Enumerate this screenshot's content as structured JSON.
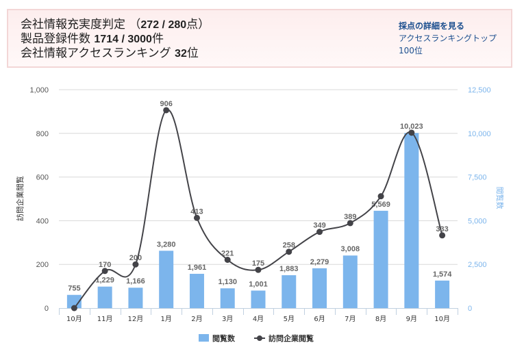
{
  "summary": {
    "line1_label": "会社情報充実度判定 （",
    "line1_value": "272 / 280",
    "line1_suffix": "点）",
    "line2_label": "製品登録件数 ",
    "line2_value": "1714 / 3000",
    "line2_suffix": "件",
    "line3_label": "会社情報アクセスランキング ",
    "line3_value": "32",
    "line3_suffix": "位",
    "link_score_details": "採点の詳細を見る",
    "link_access_ranking": "アクセスランキングトップ100位"
  },
  "colors": {
    "bar": "#7cb5ec",
    "line": "#434348",
    "right_axis": "#7cb5ec",
    "grid": "#d8d8d8"
  },
  "chart_data": {
    "type": "bar+line",
    "categories": [
      "10月",
      "11月",
      "12月",
      "1月",
      "2月",
      "3月",
      "4月",
      "5月",
      "6月",
      "7月",
      "8月",
      "9月",
      "10月"
    ],
    "series": [
      {
        "name": "閲覧数",
        "type": "bar",
        "axis": "right",
        "values": [
          755,
          1229,
          1166,
          3280,
          1961,
          1130,
          1001,
          1883,
          2279,
          3008,
          5569,
          10023,
          1574
        ],
        "labels": [
          "755",
          "1,229",
          "1,166",
          "3,280",
          "1,961",
          "1,130",
          "1,001",
          "1,883",
          "2,279",
          "3,008",
          "5,569",
          "10,023",
          "1,574"
        ]
      },
      {
        "name": "訪問企業閲覧",
        "type": "line",
        "axis": "left",
        "smooth": true,
        "values": [
          0,
          170,
          200,
          906,
          413,
          221,
          175,
          258,
          349,
          389,
          512,
          803,
          333
        ],
        "labels": [
          "",
          "170",
          "200",
          "906",
          "413",
          "221",
          "175",
          "258",
          "349",
          "389",
          "",
          "",
          "333"
        ]
      }
    ],
    "left_axis": {
      "title": "訪問企業閲覧",
      "range": [
        0,
        1000
      ],
      "ticks": [
        "0",
        "200",
        "400",
        "600",
        "800",
        "1,000"
      ],
      "tick_values": [
        0,
        200,
        400,
        600,
        800,
        1000
      ]
    },
    "right_axis": {
      "title": "閲覧数",
      "range": [
        0,
        12500
      ],
      "ticks": [
        "0",
        "2,500",
        "5,000",
        "7,500",
        "10,000",
        "12,500"
      ],
      "tick_values": [
        0,
        2500,
        5000,
        7500,
        10000,
        12500
      ]
    },
    "grid": true,
    "legend": {
      "position": "bottom-center",
      "items": [
        "閲覧数",
        "訪問企業閲覧"
      ]
    }
  }
}
